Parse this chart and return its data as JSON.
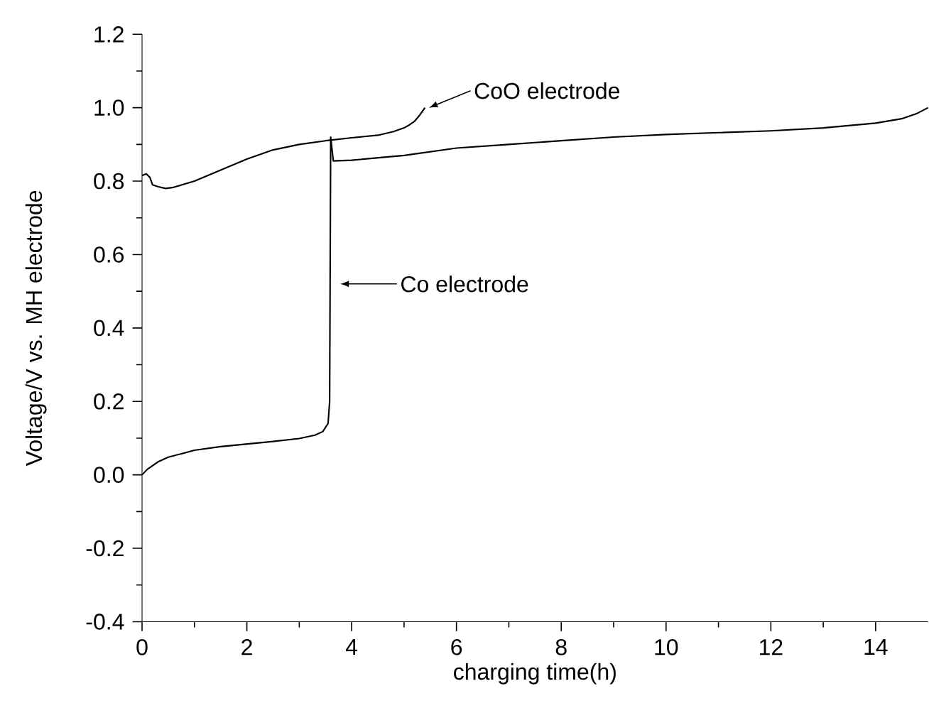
{
  "chart_data": {
    "type": "line",
    "xlabel": "charging time(h)",
    "ylabel": "Voltage/V vs. MH electrode",
    "xlim": [
      0,
      15
    ],
    "ylim": [
      -0.4,
      1.2
    ],
    "xticks": [
      0,
      2,
      4,
      6,
      8,
      10,
      12,
      14
    ],
    "yticks": [
      -0.4,
      -0.2,
      {
        "value": 0.0,
        "label": "0.0"
      },
      0.2,
      0.4,
      0.6,
      0.8,
      {
        "value": 1.0,
        "label": "1.0"
      },
      1.2
    ],
    "series": [
      {
        "color": "#000000",
        "x": [
          0,
          0.1,
          0.3,
          0.5,
          1,
          1.5,
          2,
          2.5,
          3,
          3.3,
          3.45,
          3.55,
          3.58,
          3.6,
          3.65,
          4,
          5,
          6,
          7,
          8,
          9,
          10,
          11,
          12,
          13,
          14,
          14.5,
          14.8,
          15
        ],
        "values": [
          0,
          0.015,
          0.035,
          0.048,
          0.067,
          0.077,
          0.084,
          0.091,
          0.099,
          0.108,
          0.118,
          0.14,
          0.2,
          0.92,
          0.855,
          0.857,
          0.87,
          0.89,
          0.9,
          0.91,
          0.92,
          0.927,
          0.932,
          0.937,
          0.945,
          0.958,
          0.97,
          0.985,
          1.0
        ]
      },
      {
        "color": "#000000",
        "x": [
          0,
          0.08,
          0.15,
          0.2,
          0.3,
          0.45,
          0.6,
          1,
          1.5,
          2,
          2.5,
          3,
          3.5,
          4,
          4.5,
          4.8,
          5,
          5.1,
          5.2,
          5.3,
          5.4
        ],
        "values": [
          0.815,
          0.82,
          0.81,
          0.79,
          0.785,
          0.78,
          0.783,
          0.8,
          0.83,
          0.86,
          0.885,
          0.9,
          0.91,
          0.918,
          0.925,
          0.935,
          0.945,
          0.953,
          0.963,
          0.98,
          1.0
        ]
      }
    ],
    "annotations": [
      "CoO electrode",
      "Co electrode"
    ]
  }
}
